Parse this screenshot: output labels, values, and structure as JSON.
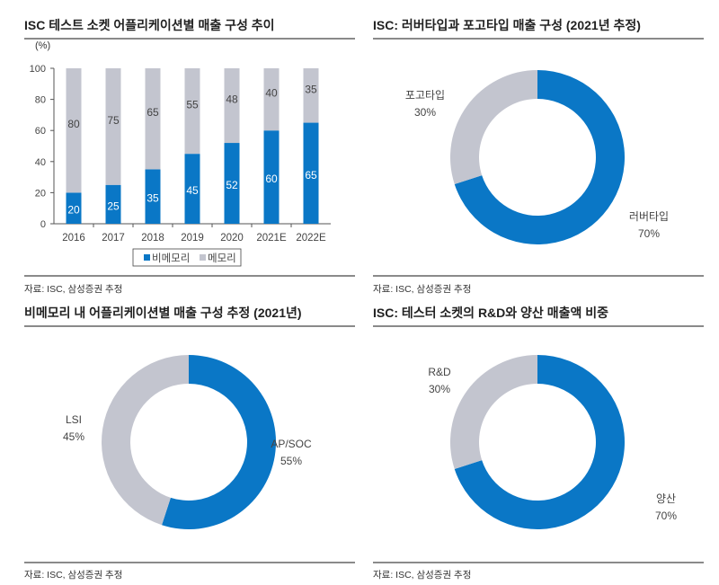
{
  "colors": {
    "blue": "#0a77c6",
    "grey": "#c3c5cf",
    "rule": "#8a8a8a"
  },
  "chart_data": [
    {
      "type": "bar",
      "stacked": true,
      "title": "ISC 테스트 소켓 어플리케이션별 매출 구성 추이",
      "ylabel": "(%)",
      "ylim": [
        0,
        100
      ],
      "yticks": [
        0,
        20,
        40,
        60,
        80,
        100
      ],
      "categories": [
        "2016",
        "2017",
        "2018",
        "2019",
        "2020",
        "2021E",
        "2022E"
      ],
      "series": [
        {
          "name": "비메모리",
          "color": "#0a77c6",
          "values": [
            20,
            25,
            35,
            45,
            52,
            60,
            65
          ]
        },
        {
          "name": "메모리",
          "color": "#c3c5cf",
          "values": [
            80,
            75,
            65,
            55,
            48,
            40,
            35
          ]
        }
      ],
      "legend": "bottom",
      "source": "자료: ISC, 삼성증권 추정"
    },
    {
      "type": "pie",
      "donut": true,
      "title": "ISC: 러버타입과 포고타입 매출 구성 (2021년 추정)",
      "slices": [
        {
          "label": "러버타입",
          "value": 70,
          "value_label": "70%",
          "color": "#0a77c6"
        },
        {
          "label": "포고타입",
          "value": 30,
          "value_label": "30%",
          "color": "#c3c5cf"
        }
      ],
      "source": "자료: ISC, 삼성증권 추정"
    },
    {
      "type": "pie",
      "donut": true,
      "title": "비메모리 내 어플리케이션별 매출 구성 추정 (2021년)",
      "slices": [
        {
          "label": "AP/SOC",
          "value": 55,
          "value_label": "55%",
          "color": "#0a77c6"
        },
        {
          "label": "LSI",
          "value": 45,
          "value_label": "45%",
          "color": "#c3c5cf"
        }
      ],
      "source": "자료: ISC, 삼성증권 추정"
    },
    {
      "type": "pie",
      "donut": true,
      "title": "ISC: 테스터 소켓의 R&D와 양산 매출액 비중",
      "slices": [
        {
          "label": "양산",
          "value": 70,
          "value_label": "70%",
          "color": "#0a77c6"
        },
        {
          "label": "R&D",
          "value": 30,
          "value_label": "30%",
          "color": "#c3c5cf"
        }
      ],
      "source": "자료: ISC, 삼성증권 추정"
    }
  ]
}
